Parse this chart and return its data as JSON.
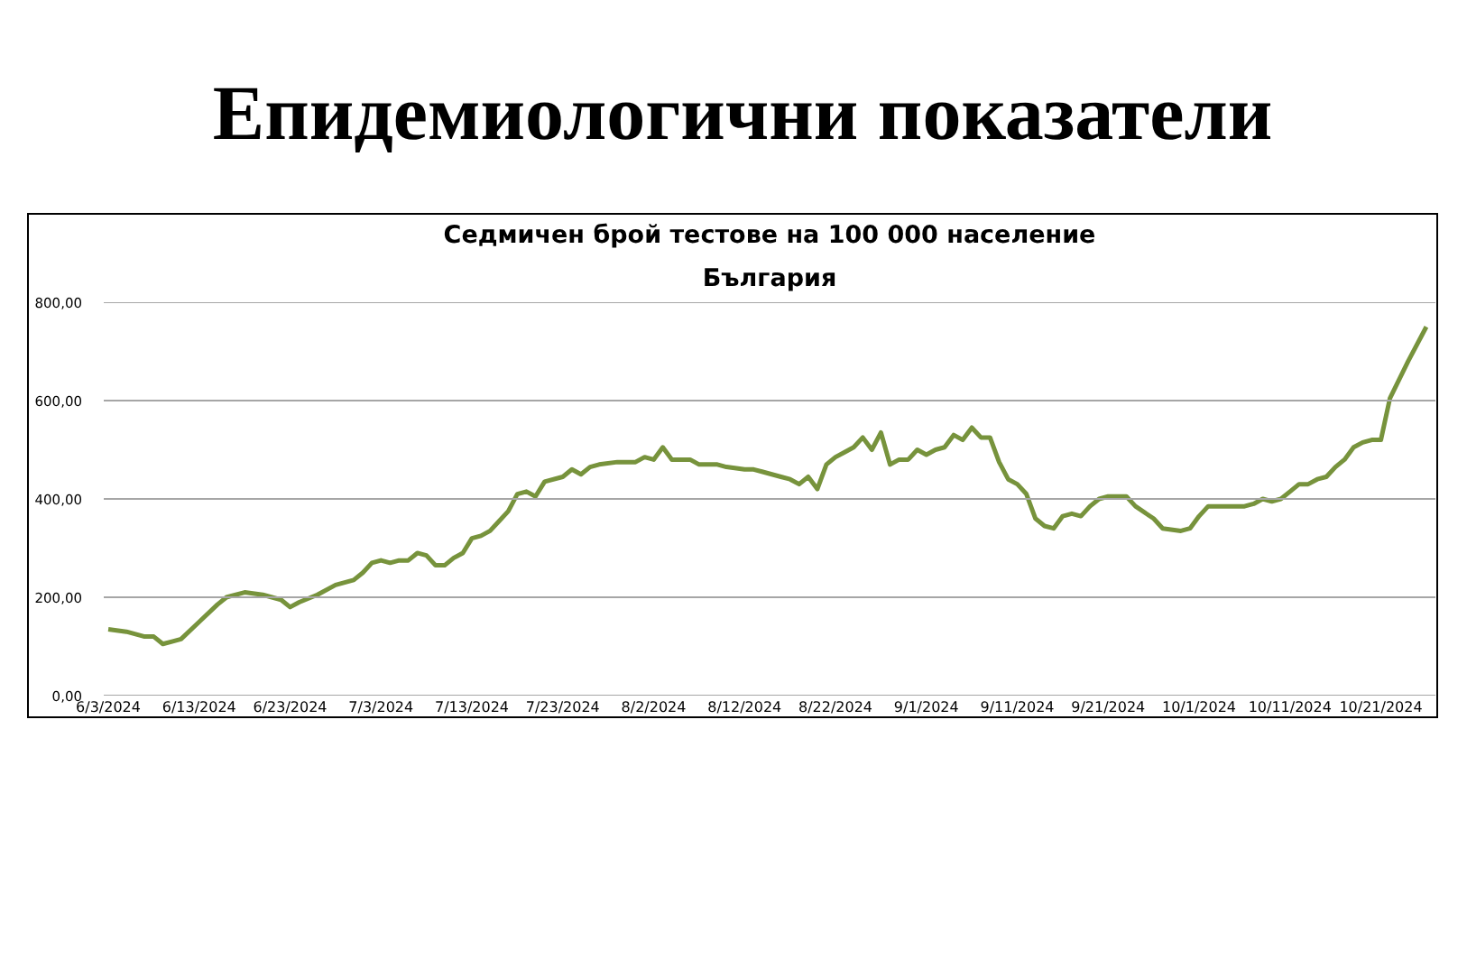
{
  "chart_data": {
    "type": "line",
    "title": "Седмичен брой тестове на 100 000 население",
    "subtitle": "България",
    "annotations": [
      "Епидемиологични показатели"
    ],
    "x": [
      "2024-06-03",
      "2024-06-05",
      "2024-06-06",
      "2024-06-07",
      "2024-06-08",
      "2024-06-09",
      "2024-06-10",
      "2024-06-11",
      "2024-06-13",
      "2024-06-15",
      "2024-06-16",
      "2024-06-18",
      "2024-06-20",
      "2024-06-22",
      "2024-06-23",
      "2024-06-24",
      "2024-06-26",
      "2024-06-28",
      "2024-06-30",
      "2024-07-01",
      "2024-07-02",
      "2024-07-03",
      "2024-07-04",
      "2024-07-05",
      "2024-07-06",
      "2024-07-07",
      "2024-07-08",
      "2024-07-09",
      "2024-07-10",
      "2024-07-11",
      "2024-07-12",
      "2024-07-13",
      "2024-07-14",
      "2024-07-15",
      "2024-07-16",
      "2024-07-17",
      "2024-07-18",
      "2024-07-19",
      "2024-07-20",
      "2024-07-21",
      "2024-07-23",
      "2024-07-24",
      "2024-07-25",
      "2024-07-26",
      "2024-07-27",
      "2024-07-29",
      "2024-07-31",
      "2024-08-01",
      "2024-08-02",
      "2024-08-03",
      "2024-08-04",
      "2024-08-06",
      "2024-08-07",
      "2024-08-09",
      "2024-08-10",
      "2024-08-12",
      "2024-08-13",
      "2024-08-14",
      "2024-08-16",
      "2024-08-17",
      "2024-08-18",
      "2024-08-19",
      "2024-08-20",
      "2024-08-21",
      "2024-08-22",
      "2024-08-23",
      "2024-08-24",
      "2024-08-25",
      "2024-08-26",
      "2024-08-27",
      "2024-08-28",
      "2024-08-29",
      "2024-08-30",
      "2024-08-31",
      "2024-09-01",
      "2024-09-02",
      "2024-09-03",
      "2024-09-04",
      "2024-09-05",
      "2024-09-06",
      "2024-09-07",
      "2024-09-08",
      "2024-09-09",
      "2024-09-10",
      "2024-09-11",
      "2024-09-12",
      "2024-09-13",
      "2024-09-14",
      "2024-09-15",
      "2024-09-16",
      "2024-09-17",
      "2024-09-18",
      "2024-09-19",
      "2024-09-20",
      "2024-09-21",
      "2024-09-23",
      "2024-09-24",
      "2024-09-26",
      "2024-09-27",
      "2024-09-29",
      "2024-09-30",
      "2024-10-01",
      "2024-10-02",
      "2024-10-04",
      "2024-10-06",
      "2024-10-07",
      "2024-10-08",
      "2024-10-09",
      "2024-10-10",
      "2024-10-11",
      "2024-10-12",
      "2024-10-13",
      "2024-10-14",
      "2024-10-15",
      "2024-10-16",
      "2024-10-17",
      "2024-10-18",
      "2024-10-19",
      "2024-10-20",
      "2024-10-21",
      "2024-10-22",
      "2024-10-24",
      "2024-10-26"
    ],
    "series": [
      {
        "color": "#77933c",
        "values": [
          135,
          130,
          125,
          120,
          120,
          105,
          110,
          115,
          150,
          185,
          200,
          210,
          205,
          195,
          180,
          190,
          205,
          225,
          235,
          250,
          270,
          275,
          270,
          275,
          275,
          290,
          285,
          265,
          265,
          280,
          290,
          320,
          325,
          335,
          355,
          375,
          410,
          415,
          405,
          435,
          445,
          460,
          450,
          465,
          470,
          475,
          475,
          485,
          480,
          505,
          480,
          480,
          470,
          470,
          465,
          460,
          460,
          455,
          445,
          440,
          430,
          445,
          420,
          470,
          485,
          495,
          505,
          525,
          500,
          535,
          470,
          480,
          480,
          500,
          490,
          500,
          505,
          530,
          520,
          545,
          525,
          525,
          475,
          440,
          430,
          410,
          360,
          345,
          340,
          365,
          370,
          365,
          385,
          400,
          405,
          405,
          385,
          360,
          340,
          335,
          340,
          365,
          385,
          385,
          385,
          390,
          400,
          395,
          400,
          415,
          430,
          430,
          440,
          445,
          465,
          480,
          505,
          515,
          520,
          520,
          605,
          680,
          750
        ]
      }
    ],
    "xlim": [
      "2024-06-02T12:00",
      "2024-10-27"
    ],
    "xticks": [
      {
        "value": "2024-06-03",
        "label": "6/3/2024"
      },
      {
        "value": "2024-06-13",
        "label": "6/13/2024"
      },
      {
        "value": "2024-06-23",
        "label": "6/23/2024"
      },
      {
        "value": "2024-07-03",
        "label": "7/3/2024"
      },
      {
        "value": "2024-07-13",
        "label": "7/13/2024"
      },
      {
        "value": "2024-07-23",
        "label": "7/23/2024"
      },
      {
        "value": "2024-08-02",
        "label": "8/2/2024"
      },
      {
        "value": "2024-08-12",
        "label": "8/12/2024"
      },
      {
        "value": "2024-08-22",
        "label": "8/22/2024"
      },
      {
        "value": "2024-09-01",
        "label": "9/1/2024"
      },
      {
        "value": "2024-09-11",
        "label": "9/11/2024"
      },
      {
        "value": "2024-09-21",
        "label": "9/21/2024"
      },
      {
        "value": "2024-10-01",
        "label": "10/1/2024"
      },
      {
        "value": "2024-10-11",
        "label": "10/11/2024"
      },
      {
        "value": "2024-10-21",
        "label": "10/21/2024"
      }
    ],
    "ylim": [
      0,
      800
    ],
    "yticks": [
      {
        "value": 0,
        "label": "0,00"
      },
      {
        "value": 200,
        "label": "200,00"
      },
      {
        "value": 400,
        "label": "400,00"
      },
      {
        "value": 600,
        "label": "600,00"
      },
      {
        "value": 800,
        "label": "800,00"
      }
    ],
    "grid": "y",
    "line_style": "solid"
  }
}
